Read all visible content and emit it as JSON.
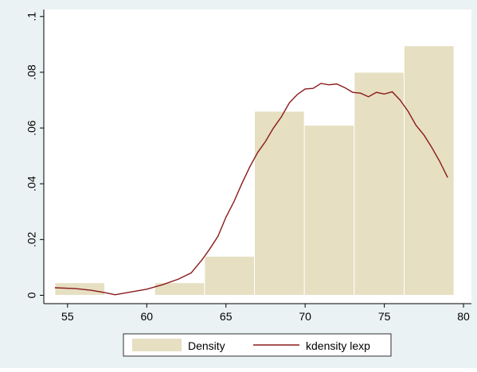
{
  "chart_data": {
    "type": "bar",
    "title": "",
    "xlabel": "",
    "ylabel": "",
    "xlim": [
      53.5,
      80.5
    ],
    "ylim": [
      -0.003,
      0.1025
    ],
    "x_ticks": [
      55,
      60,
      65,
      70,
      75,
      80
    ],
    "y_ticks": [
      0,
      0.02,
      0.04,
      0.06,
      0.08,
      0.1
    ],
    "y_tick_labels": [
      "0",
      ".02",
      ".04",
      ".06",
      ".08",
      ".1"
    ],
    "grid": false,
    "legend_position": "bottom",
    "colors": {
      "background": "#eaf2f3",
      "plot": "#ffffff",
      "bars": "#e6dfc2",
      "bar_edge": "#ffffff",
      "line": "#8b1a1a"
    },
    "histogram": {
      "name": "Density",
      "bins": [
        {
          "x0": 54.2,
          "x1": 57.35,
          "value": 0.0045
        },
        {
          "x0": 57.35,
          "x1": 60.5,
          "value": 0.0
        },
        {
          "x0": 60.5,
          "x1": 63.65,
          "value": 0.0045
        },
        {
          "x0": 63.65,
          "x1": 66.8,
          "value": 0.014
        },
        {
          "x0": 66.8,
          "x1": 69.95,
          "value": 0.066
        },
        {
          "x0": 69.95,
          "x1": 73.1,
          "value": 0.061
        },
        {
          "x0": 73.1,
          "x1": 76.25,
          "value": 0.08
        },
        {
          "x0": 76.25,
          "x1": 79.4,
          "value": 0.0895
        }
      ]
    },
    "kdensity": {
      "name": "kdensity lexp",
      "x": [
        54.2,
        55.5,
        56.5,
        57.3,
        58.0,
        58.5,
        59.0,
        60.0,
        61.0,
        62.0,
        62.8,
        63.5,
        64.0,
        64.5,
        65.0,
        65.5,
        66.0,
        66.5,
        67.0,
        67.5,
        68.0,
        68.5,
        69.0,
        69.5,
        70.0,
        70.5,
        71.0,
        71.5,
        72.0,
        72.5,
        73.0,
        73.5,
        74.0,
        74.5,
        75.0,
        75.5,
        76.0,
        76.5,
        77.0,
        77.5,
        78.0,
        78.5,
        79.0
      ],
      "y": [
        0.0027,
        0.0024,
        0.0018,
        0.001,
        0.0002,
        0.0007,
        0.0012,
        0.0022,
        0.0038,
        0.0058,
        0.008,
        0.0128,
        0.0168,
        0.0212,
        0.028,
        0.0335,
        0.04,
        0.046,
        0.0512,
        0.0552,
        0.06,
        0.064,
        0.069,
        0.072,
        0.074,
        0.0742,
        0.076,
        0.0755,
        0.0758,
        0.0745,
        0.0728,
        0.0725,
        0.0712,
        0.0728,
        0.0722,
        0.073,
        0.07,
        0.066,
        0.061,
        0.0575,
        0.053,
        0.048,
        0.0422
      ]
    }
  }
}
